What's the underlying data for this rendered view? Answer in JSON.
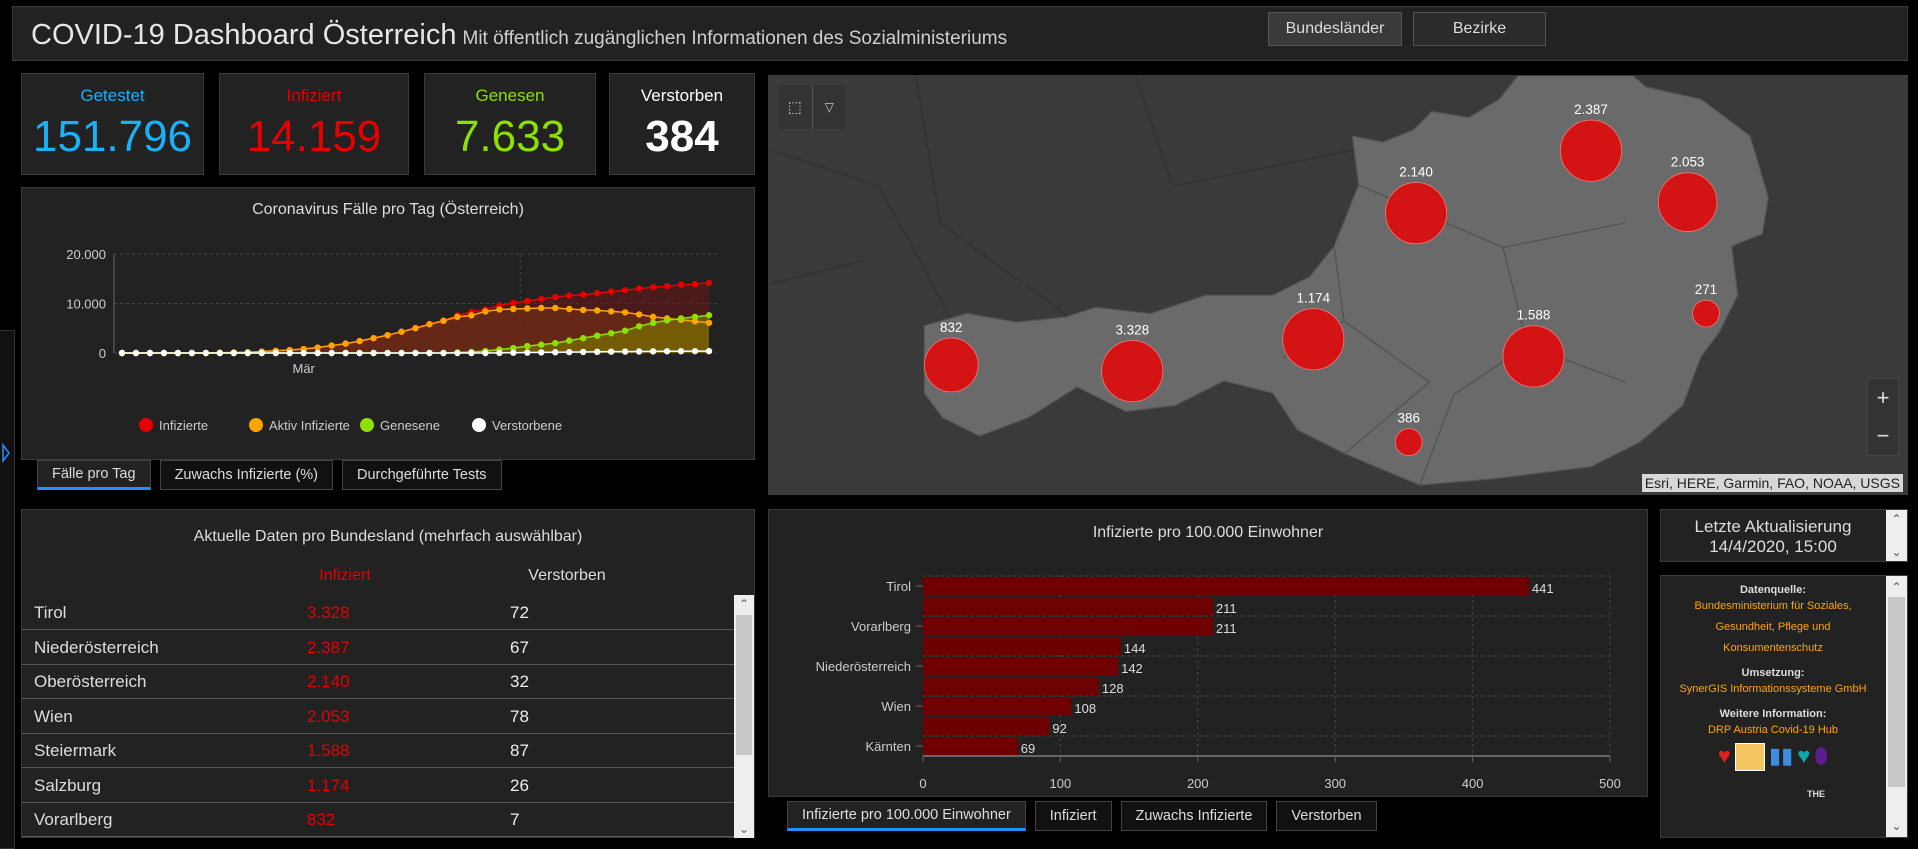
{
  "header": {
    "title": "COVID-19 Dashboard Österreich",
    "subtitle": "Mit öffentlich zugänglichen Informationen des Sozialministeriums",
    "buttons": [
      "Bundesländer",
      "Bezirke"
    ]
  },
  "kpis": [
    {
      "label": "Getestet",
      "value": "151.796",
      "color": "#1cb0f6"
    },
    {
      "label": "Infiziert",
      "value": "14.159",
      "color": "#e60000"
    },
    {
      "label": "Genesen",
      "value": "7.633",
      "color": "#8ee000"
    },
    {
      "label": "Verstorben",
      "value": "384",
      "color": "#ffffff"
    }
  ],
  "chart_data": [
    {
      "type": "area",
      "title": "Coronavirus Fälle pro Tag (Österreich)",
      "ylim": [
        0,
        20000
      ],
      "yticks": [
        "0",
        "10.000",
        "20.000"
      ],
      "xtick": {
        "label": "Mär",
        "index": 13
      },
      "grid": true,
      "legend_placement": "bottom",
      "series": [
        {
          "name": "Infizierte",
          "color": "#e60000",
          "values": [
            0,
            0,
            0,
            0,
            0,
            0,
            0,
            50,
            100,
            150,
            300,
            450,
            600,
            800,
            1100,
            1500,
            1900,
            2400,
            3000,
            3600,
            4300,
            5100,
            5900,
            6600,
            7600,
            8300,
            8800,
            9600,
            10100,
            10500,
            10900,
            11300,
            11600,
            11800,
            12100,
            12400,
            12700,
            13000,
            13300,
            13500,
            13800,
            13900,
            14159
          ]
        },
        {
          "name": "Aktiv Infizierte",
          "color": "#ffa500",
          "values": [
            0,
            0,
            0,
            0,
            0,
            0,
            0,
            50,
            100,
            150,
            300,
            450,
            600,
            800,
            1100,
            1500,
            1900,
            2400,
            3000,
            3600,
            4300,
            5000,
            5800,
            6500,
            7300,
            7600,
            8400,
            8800,
            8900,
            9000,
            9100,
            9100,
            8900,
            8700,
            8600,
            8400,
            8200,
            7800,
            7300,
            7000,
            6700,
            6400,
            6100
          ]
        },
        {
          "name": "Genesene",
          "color": "#8ee000",
          "values": [
            0,
            0,
            0,
            0,
            0,
            0,
            0,
            0,
            0,
            0,
            0,
            0,
            0,
            0,
            0,
            0,
            0,
            0,
            0,
            0,
            0,
            0,
            0,
            0,
            100,
            200,
            400,
            700,
            1000,
            1400,
            1700,
            2000,
            2500,
            3000,
            3500,
            4000,
            4500,
            5400,
            6100,
            6600,
            7000,
            7300,
            7633
          ]
        },
        {
          "name": "Verstorbene",
          "color": "#ffffff",
          "values": [
            0,
            0,
            0,
            0,
            0,
            0,
            0,
            0,
            0,
            0,
            0,
            0,
            0,
            0,
            0,
            0,
            0,
            0,
            0,
            0,
            0,
            0,
            0,
            0,
            0,
            0,
            0,
            30,
            60,
            90,
            120,
            150,
            180,
            210,
            240,
            270,
            290,
            310,
            330,
            350,
            360,
            370,
            384
          ]
        }
      ]
    },
    {
      "type": "bar",
      "orientation": "horizontal",
      "title": "Infizierte pro 100.000 Einwohner",
      "categories": [
        "Tirol",
        "",
        "Vorarlberg",
        "",
        "Niederösterreich",
        "",
        "Wien",
        "",
        "Kärnten"
      ],
      "values": [
        441,
        211,
        211,
        144,
        142,
        128,
        108,
        92,
        69
      ],
      "xlim": [
        0,
        500
      ],
      "xticks": [
        "0",
        "100",
        "200",
        "300",
        "400",
        "500"
      ],
      "color": "#6e0000",
      "grid": true
    }
  ],
  "chart_tabs": [
    "Fälle pro Tag",
    "Zuwachs Infizierte (%)",
    "Durchgeführte Tests"
  ],
  "table": {
    "title": "Aktuelle Daten pro Bundesland (mehrfach auswählbar)",
    "columns": [
      "Infiziert",
      "Verstorben"
    ],
    "rows": [
      {
        "name": "Tirol",
        "infiziert": "3.328",
        "verstorben": "72"
      },
      {
        "name": "Niederösterreich",
        "infiziert": "2.387",
        "verstorben": "67"
      },
      {
        "name": "Oberösterreich",
        "infiziert": "2.140",
        "verstorben": "32"
      },
      {
        "name": "Wien",
        "infiziert": "2.053",
        "verstorben": "78"
      },
      {
        "name": "Steiermark",
        "infiziert": "1.588",
        "verstorben": "87"
      },
      {
        "name": "Salzburg",
        "infiziert": "1.174",
        "verstorben": "26"
      },
      {
        "name": "Vorarlberg",
        "infiziert": "832",
        "verstorben": "7"
      }
    ]
  },
  "map": {
    "markers": [
      {
        "label": "832",
        "value": 832
      },
      {
        "label": "3.328",
        "value": 3328
      },
      {
        "label": "1.174",
        "value": 1174
      },
      {
        "label": "2.140",
        "value": 2140
      },
      {
        "label": "2.387",
        "value": 2387
      },
      {
        "label": "2.053",
        "value": 2053
      },
      {
        "label": "271",
        "value": 271
      },
      {
        "label": "1.588",
        "value": 1588
      },
      {
        "label": "386",
        "value": 386
      }
    ],
    "marker_color": "#d41414",
    "attribution": "Esri, HERE, Garmin, FAO, NOAA, USGS",
    "zoom_in": "+",
    "zoom_out": "−"
  },
  "bar_tabs": [
    "Infizierte pro 100.000 Einwohner",
    "Infiziert",
    "Zuwachs Infizierte",
    "Verstorben"
  ],
  "update": {
    "label": "Letzte Aktualisierung",
    "value": "14/4/2020, 15:00"
  },
  "info": {
    "source_label": "Datenquelle:",
    "source_lines": [
      "Bundesministerium für Soziales,",
      "Gesundheit, Pflege und",
      "Konsumentenschutz"
    ],
    "impl_label": "Umsetzung:",
    "impl": "SynerGIS Informationssysteme GmbH",
    "more_label": "Weitere Information:",
    "more": "DRP Austria Covid-19 Hub",
    "partial_text": "THE"
  }
}
